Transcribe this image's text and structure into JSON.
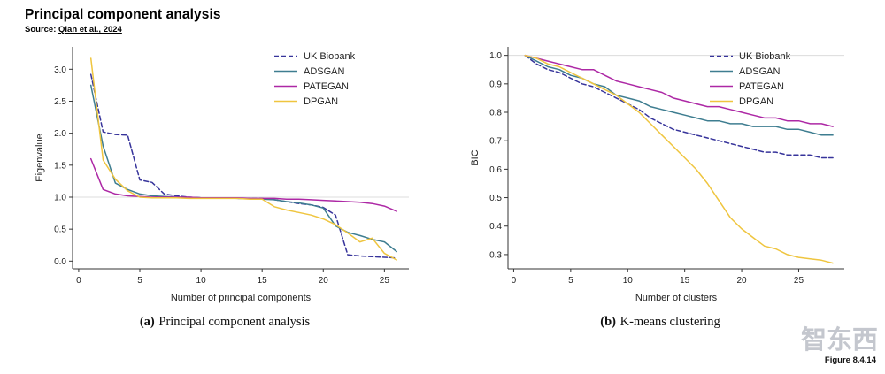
{
  "page": {
    "title": "Principal component analysis",
    "source_prefix": "Source:",
    "source_link": "Qian et al., 2024",
    "figure_label": "Figure 8.4.14",
    "watermark": "智东西"
  },
  "colors": {
    "uk_biobank": "#37349b",
    "adsgan": "#3e7d90",
    "pategan": "#ad28a5",
    "dpgan": "#efc53f"
  },
  "chart_data": [
    {
      "type": "line",
      "title": "(a) Principal component analysis",
      "caption_prefix": "(a)",
      "caption_text": "Principal component analysis",
      "xlabel": "Number of principal components",
      "ylabel": "Eigenvalue",
      "xlim": [
        -0.5,
        27
      ],
      "ylim": [
        -0.12,
        3.35
      ],
      "xticks": [
        0,
        5,
        10,
        15,
        20,
        25
      ],
      "xtick_labels": [
        "0",
        "5",
        "10",
        "15",
        "20",
        "25"
      ],
      "yticks": [
        0,
        0.5,
        1,
        1.5,
        2,
        2.5,
        3
      ],
      "ytick_labels": [
        "0.0",
        "0.5",
        "1.0",
        "1.5",
        "2.0",
        "2.5",
        "3.0"
      ],
      "refline_y": 1.0,
      "grid": false,
      "legend_position": "upper right",
      "x": [
        1,
        2,
        3,
        4,
        5,
        6,
        7,
        8,
        9,
        10,
        11,
        12,
        13,
        14,
        15,
        16,
        17,
        18,
        19,
        20,
        21,
        22,
        23,
        24,
        25,
        26
      ],
      "series": [
        {
          "name": "UK Biobank",
          "color_key": "uk_biobank",
          "dashed": true,
          "values": [
            2.92,
            2.02,
            1.98,
            1.97,
            1.27,
            1.23,
            1.05,
            1.02,
            1.0,
            0.99,
            0.99,
            0.99,
            0.98,
            0.98,
            0.98,
            0.96,
            0.93,
            0.9,
            0.88,
            0.84,
            0.72,
            0.1,
            0.08,
            0.07,
            0.06,
            0.05
          ]
        },
        {
          "name": "ADSGAN",
          "color_key": "adsgan",
          "dashed": false,
          "values": [
            2.75,
            1.8,
            1.22,
            1.12,
            1.05,
            1.02,
            1.01,
            1.0,
            1.0,
            0.99,
            0.99,
            0.99,
            0.98,
            0.98,
            0.97,
            0.96,
            0.93,
            0.91,
            0.88,
            0.83,
            0.55,
            0.45,
            0.4,
            0.34,
            0.3,
            0.15
          ]
        },
        {
          "name": "PATEGAN",
          "color_key": "pategan",
          "dashed": false,
          "values": [
            1.6,
            1.12,
            1.05,
            1.02,
            1.01,
            1.0,
            1.0,
            1.0,
            1.0,
            0.99,
            0.99,
            0.99,
            0.99,
            0.98,
            0.98,
            0.98,
            0.97,
            0.97,
            0.96,
            0.95,
            0.94,
            0.93,
            0.92,
            0.9,
            0.86,
            0.78
          ]
        },
        {
          "name": "DPGAN",
          "color_key": "dpgan",
          "dashed": false,
          "values": [
            3.17,
            1.58,
            1.28,
            1.1,
            1.0,
            0.99,
            0.99,
            0.99,
            0.98,
            0.98,
            0.98,
            0.98,
            0.98,
            0.97,
            0.97,
            0.85,
            0.8,
            0.76,
            0.72,
            0.66,
            0.57,
            0.44,
            0.3,
            0.36,
            0.12,
            0.02
          ]
        }
      ]
    },
    {
      "type": "line",
      "title": "(b) K-means clustering",
      "caption_prefix": "(b)",
      "caption_text": "K-means clustering",
      "xlabel": "Number of clusters",
      "ylabel": "BIC",
      "xlim": [
        -0.5,
        29
      ],
      "ylim": [
        0.25,
        1.03
      ],
      "xticks": [
        0,
        5,
        10,
        15,
        20,
        25
      ],
      "xtick_labels": [
        "0",
        "5",
        "10",
        "15",
        "20",
        "25"
      ],
      "yticks": [
        0.3,
        0.4,
        0.5,
        0.6,
        0.7,
        0.8,
        0.9,
        1.0
      ],
      "ytick_labels": [
        "0.3",
        "0.4",
        "0.5",
        "0.6",
        "0.7",
        "0.8",
        "0.9",
        "1.0"
      ],
      "refline_y": 1.0,
      "grid": false,
      "legend_position": "upper right",
      "x": [
        1,
        2,
        3,
        4,
        5,
        6,
        7,
        8,
        9,
        10,
        11,
        12,
        13,
        14,
        15,
        16,
        17,
        18,
        19,
        20,
        21,
        22,
        23,
        24,
        25,
        26,
        27,
        28
      ],
      "series": [
        {
          "name": "UK Biobank",
          "color_key": "uk_biobank",
          "dashed": true,
          "values": [
            1.0,
            0.97,
            0.95,
            0.94,
            0.92,
            0.9,
            0.89,
            0.87,
            0.85,
            0.83,
            0.81,
            0.78,
            0.76,
            0.74,
            0.73,
            0.72,
            0.71,
            0.7,
            0.69,
            0.68,
            0.67,
            0.66,
            0.66,
            0.65,
            0.65,
            0.65,
            0.64,
            0.64
          ]
        },
        {
          "name": "ADSGAN",
          "color_key": "adsgan",
          "dashed": false,
          "values": [
            1.0,
            0.98,
            0.96,
            0.95,
            0.93,
            0.92,
            0.9,
            0.89,
            0.86,
            0.85,
            0.84,
            0.82,
            0.81,
            0.8,
            0.79,
            0.78,
            0.77,
            0.77,
            0.76,
            0.76,
            0.75,
            0.75,
            0.75,
            0.74,
            0.74,
            0.73,
            0.72,
            0.72
          ]
        },
        {
          "name": "PATEGAN",
          "color_key": "pategan",
          "dashed": false,
          "values": [
            1.0,
            0.99,
            0.98,
            0.97,
            0.96,
            0.95,
            0.95,
            0.93,
            0.91,
            0.9,
            0.89,
            0.88,
            0.87,
            0.85,
            0.84,
            0.83,
            0.82,
            0.82,
            0.81,
            0.8,
            0.79,
            0.78,
            0.78,
            0.77,
            0.77,
            0.76,
            0.76,
            0.75
          ]
        },
        {
          "name": "DPGAN",
          "color_key": "dpgan",
          "dashed": false,
          "values": [
            1.0,
            0.99,
            0.97,
            0.96,
            0.94,
            0.92,
            0.9,
            0.88,
            0.86,
            0.83,
            0.8,
            0.76,
            0.72,
            0.68,
            0.64,
            0.6,
            0.55,
            0.49,
            0.43,
            0.39,
            0.36,
            0.33,
            0.32,
            0.3,
            0.29,
            0.285,
            0.28,
            0.27
          ]
        }
      ]
    }
  ]
}
